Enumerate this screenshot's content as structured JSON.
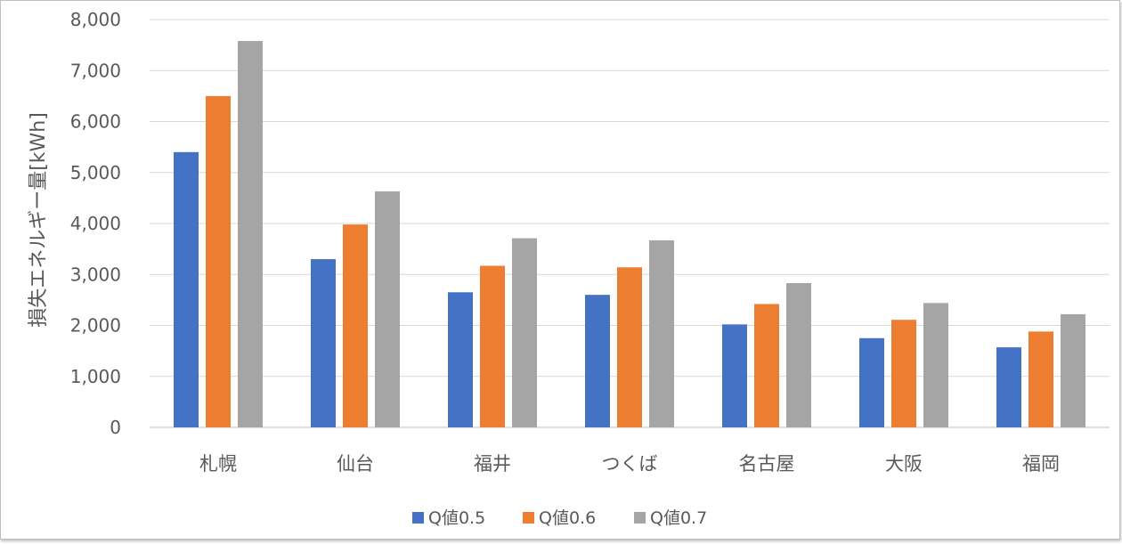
{
  "chart_data": {
    "type": "bar",
    "ylabel": "損失エネルギー量[kWh]",
    "xlabel": "",
    "categories": [
      "札幌",
      "仙台",
      "福井",
      "つくば",
      "名古屋",
      "大阪",
      "福岡"
    ],
    "series": [
      {
        "name": "Q値0.5",
        "color": "#4472c4",
        "values": [
          5400,
          3300,
          2650,
          2600,
          2020,
          1750,
          1570
        ]
      },
      {
        "name": "Q値0.6",
        "color": "#ed7d31",
        "values": [
          6500,
          3980,
          3170,
          3140,
          2420,
          2110,
          1880
        ]
      },
      {
        "name": "Q値0.7",
        "color": "#a5a5a5",
        "values": [
          7580,
          4630,
          3710,
          3670,
          2830,
          2440,
          2220
        ]
      }
    ],
    "ylim": [
      0,
      8000
    ],
    "yticks": [
      0,
      1000,
      2000,
      3000,
      4000,
      5000,
      6000,
      7000,
      8000
    ],
    "ytick_labels": [
      "0",
      "1,000",
      "2,000",
      "3,000",
      "4,000",
      "5,000",
      "6,000",
      "7,000",
      "8,000"
    ],
    "grid": true,
    "legend_position": "bottom"
  }
}
